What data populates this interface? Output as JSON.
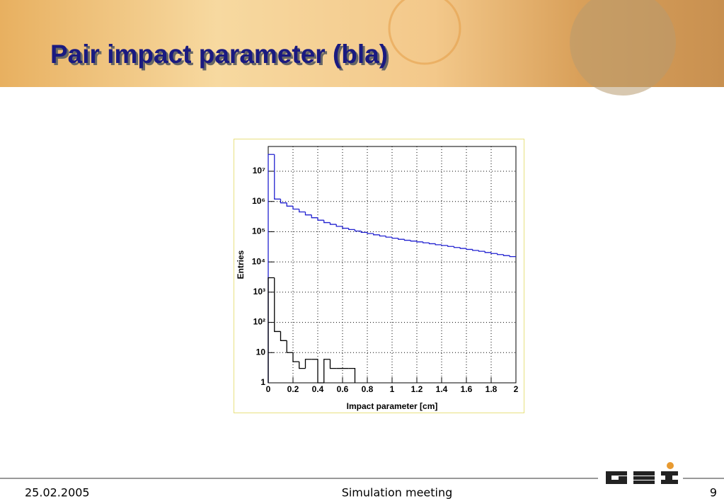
{
  "slide": {
    "title": "Pair impact parameter (bla)",
    "date": "25.02.2005",
    "footer": "Simulation meeting",
    "page": 9
  },
  "chart_data": {
    "type": "histogram",
    "log_y": true,
    "grid": true,
    "xlabel": "Impact parameter [cm]",
    "ylabel": "Entries",
    "bins": [
      0,
      0.05,
      0.1,
      0.15,
      0.2,
      0.25,
      0.3,
      0.35,
      0.4,
      0.45,
      0.5,
      0.55,
      0.6,
      0.65,
      0.7,
      0.75,
      0.8,
      0.85,
      0.9,
      0.95,
      1,
      1.05,
      1.1,
      1.15,
      1.2,
      1.25,
      1.3,
      1.35,
      1.4,
      1.45,
      1.5,
      1.55,
      1.6,
      1.65,
      1.7,
      1.75,
      1.8,
      1.85,
      1.9,
      1.95,
      2
    ],
    "series": [
      {
        "color": "#2020d0",
        "values": [
          36000000,
          1200000,
          900000,
          700000,
          560000,
          450000,
          360000,
          290000,
          240000,
          200000,
          175000,
          150000,
          130000,
          118000,
          105000,
          95000,
          87000,
          79000,
          72000,
          66000,
          61000,
          56000,
          52000,
          49000,
          46000,
          43000,
          40000,
          37000,
          35000,
          32500,
          30000,
          28000,
          26000,
          24000,
          22500,
          20500,
          19000,
          17500,
          16200,
          15000
        ]
      },
      {
        "color": "#000000",
        "values": [
          3000,
          50,
          25,
          10,
          5,
          3,
          6,
          6,
          1,
          6,
          3,
          3,
          3,
          3,
          null,
          null,
          null,
          null,
          null,
          null,
          null,
          null,
          null,
          null,
          null,
          null,
          null,
          null,
          null,
          null,
          null,
          null,
          null,
          null,
          null,
          null,
          null,
          null,
          null,
          null
        ]
      }
    ],
    "xlim": [
      0,
      2
    ],
    "xticks": [
      0,
      0.2,
      0.4,
      0.6,
      0.8,
      1,
      1.2,
      1.4,
      1.6,
      1.8,
      2
    ],
    "ylim": [
      1,
      66000000
    ],
    "yticks": [
      1,
      10,
      {
        "value": 100,
        "label": "10²"
      },
      {
        "value": 1000,
        "label": "10³"
      },
      {
        "value": 10000,
        "label": "10⁴"
      },
      {
        "value": 100000,
        "label": "10⁵"
      },
      {
        "value": 1000000,
        "label": "10⁶"
      },
      {
        "value": 10000000,
        "label": "10⁷"
      }
    ]
  }
}
